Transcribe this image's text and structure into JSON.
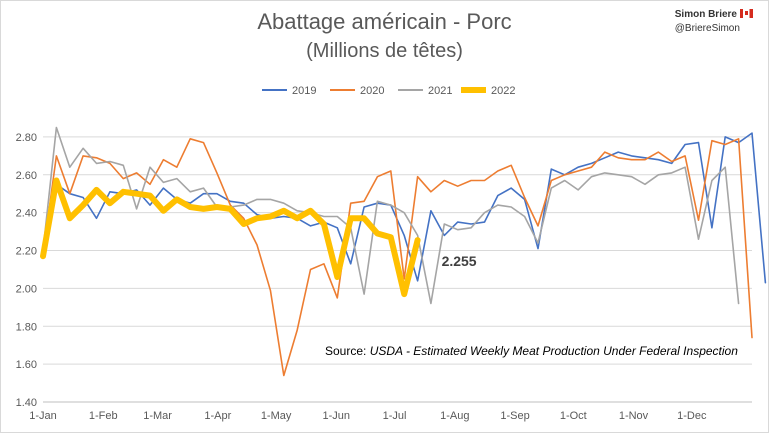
{
  "header": {
    "title": "Abattage américain - Porc",
    "subtitle": "(Millions de têtes)",
    "author_name": "Simon Briere",
    "author_handle": "@BriereSimon"
  },
  "source": {
    "prefix": "Source: ",
    "org": "USDA",
    "separator": " - ",
    "detail": "Estimated Weekly Meat Production Under Federal Inspection"
  },
  "colors": {
    "2019": "#4472c4",
    "2020": "#ed7d31",
    "2021": "#a5a5a5",
    "2022": "#ffc000"
  },
  "chart_data": {
    "type": "line",
    "ylim": [
      1.4,
      2.9
    ],
    "y_ticks": [
      "1.40",
      "1.60",
      "1.80",
      "2.00",
      "2.20",
      "2.40",
      "2.60",
      "2.80"
    ],
    "x_ticks": [
      "1-Jan",
      "1-Feb",
      "1-Mar",
      "1-Apr",
      "1-May",
      "1-Jun",
      "1-Jul",
      "1-Aug",
      "1-Sep",
      "1-Oct",
      "1-Nov",
      "1-Dec"
    ],
    "grid": true,
    "legend_position": "top",
    "annotation": "2.255",
    "series": [
      {
        "name": "2019",
        "values": [
          2.18,
          2.55,
          2.5,
          2.48,
          2.37,
          2.51,
          2.5,
          2.52,
          2.44,
          2.53,
          2.47,
          2.45,
          2.5,
          2.5,
          2.46,
          2.45,
          2.39,
          2.37,
          2.38,
          2.37,
          2.33,
          2.35,
          2.32,
          2.13,
          2.43,
          2.45,
          2.44,
          2.28,
          2.04,
          2.41,
          2.28,
          2.35,
          2.34,
          2.35,
          2.49,
          2.53,
          2.47,
          2.21,
          2.63,
          2.6,
          2.64,
          2.66,
          2.69,
          2.72,
          2.7,
          2.69,
          2.68,
          2.66,
          2.76,
          2.77,
          2.32,
          2.8,
          2.77,
          2.82,
          2.03
        ]
      },
      {
        "name": "2020",
        "values": [
          2.18,
          2.7,
          2.5,
          2.7,
          2.69,
          2.66,
          2.58,
          2.61,
          2.55,
          2.68,
          2.64,
          2.79,
          2.77,
          2.61,
          2.44,
          2.37,
          2.23,
          1.99,
          1.54,
          1.78,
          2.1,
          2.13,
          1.95,
          2.45,
          2.46,
          2.59,
          2.62,
          2.05,
          2.59,
          2.51,
          2.57,
          2.54,
          2.57,
          2.57,
          2.62,
          2.65,
          2.48,
          2.33,
          2.57,
          2.6,
          2.62,
          2.64,
          2.72,
          2.69,
          2.68,
          2.68,
          2.72,
          2.67,
          2.7,
          2.36,
          2.78,
          2.76,
          2.79,
          1.74
        ]
      },
      {
        "name": "2021",
        "values": [
          2.2,
          2.85,
          2.64,
          2.74,
          2.66,
          2.67,
          2.65,
          2.42,
          2.64,
          2.56,
          2.58,
          2.51,
          2.53,
          2.43,
          2.43,
          2.44,
          2.47,
          2.47,
          2.45,
          2.41,
          2.4,
          2.38,
          2.38,
          2.32,
          1.97,
          2.46,
          2.44,
          2.4,
          2.28,
          1.92,
          2.34,
          2.31,
          2.32,
          2.4,
          2.44,
          2.43,
          2.38,
          2.24,
          2.53,
          2.57,
          2.52,
          2.59,
          2.61,
          2.6,
          2.59,
          2.55,
          2.6,
          2.61,
          2.64,
          2.26,
          2.57,
          2.64,
          1.92
        ]
      },
      {
        "name": "2022",
        "values": [
          2.17,
          2.57,
          2.37,
          2.44,
          2.52,
          2.45,
          2.51,
          2.5,
          2.49,
          2.41,
          2.47,
          2.43,
          2.42,
          2.43,
          2.42,
          2.34,
          2.37,
          2.38,
          2.41,
          2.37,
          2.41,
          2.34,
          2.06,
          2.37,
          2.37,
          2.29,
          2.27,
          1.97,
          2.255
        ]
      }
    ]
  }
}
